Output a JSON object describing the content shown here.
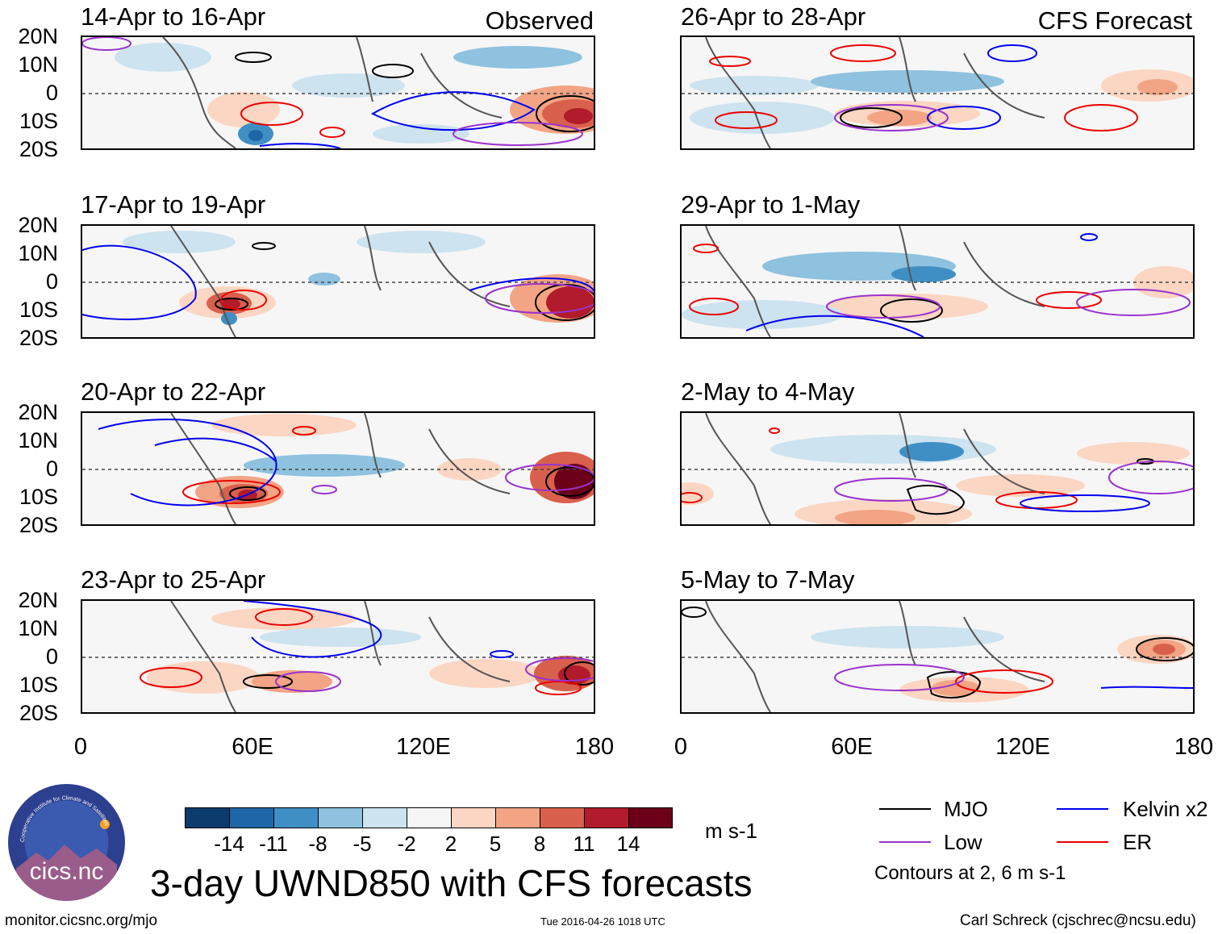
{
  "colors": {
    "mjo": "#000000",
    "low": "#9a32cd",
    "kelvin": "#0000ee",
    "er": "#ee0000",
    "scale": [
      "#0d3b6e",
      "#1f66a8",
      "#3f8fc4",
      "#8ec2de",
      "#cde3ef",
      "#f6f6f6",
      "#fbd6c2",
      "#f2a484",
      "#d9604c",
      "#b11b2b",
      "#6b0018"
    ]
  },
  "observed_label": "Observed",
  "forecast_label": "CFS Forecast",
  "panels": {
    "obs": [
      {
        "title": "14-Apr to 16-Apr"
      },
      {
        "title": "17-Apr to 19-Apr"
      },
      {
        "title": "20-Apr to 22-Apr"
      },
      {
        "title": "23-Apr to 25-Apr"
      }
    ],
    "fc": [
      {
        "title": "26-Apr to 28-Apr"
      },
      {
        "title": "29-Apr to 1-May"
      },
      {
        "title": "2-May to 4-May"
      },
      {
        "title": "5-May to 7-May"
      }
    ]
  },
  "lat_labels": [
    "20N",
    "10N",
    "0",
    "10S",
    "20S"
  ],
  "lon_labels": [
    "0",
    "60E",
    "120E",
    "180"
  ],
  "colorbar": {
    "labels": [
      "-14",
      "-11",
      "-8",
      "-5",
      "-2",
      "2",
      "5",
      "8",
      "11",
      "14"
    ],
    "units": "m s-1"
  },
  "title": "3-day UWND850 with CFS forecasts",
  "legend": {
    "mjo": "MJO",
    "kelvin": "Kelvin x2",
    "low": "Low",
    "er": "ER",
    "note": "Contours at 2, 6 m s-1"
  },
  "logo_text": "cics.nc",
  "logo_ring_text": "Cooperative Institute for Climate and Satellites",
  "footer": {
    "url": "monitor.cicsnc.org/mjo",
    "timestamp": "Tue 2016-04-26 1018 UTC",
    "credit": "Carl Schreck (cjschrec@ncsu.edu)"
  }
}
